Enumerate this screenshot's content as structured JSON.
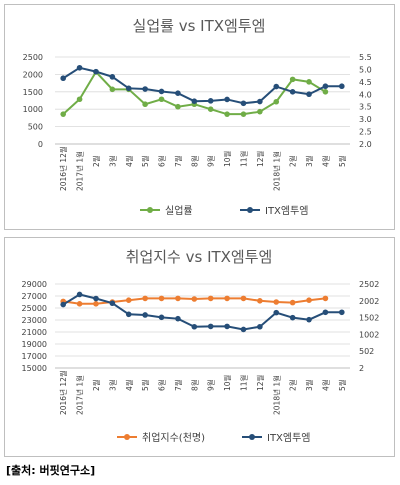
{
  "source": "[출처: 버핏연구소]",
  "chart_data": [
    {
      "type": "line",
      "title": "실업률 vs ITX엠투엠",
      "categories": [
        "2016년 12월",
        "2017년 1월",
        "2월",
        "3월",
        "4월",
        "5월",
        "6월",
        "7월",
        "8월",
        "9월",
        "10월",
        "11월",
        "12월",
        "2018년 1월",
        "2월",
        "3월",
        "4월",
        "5월"
      ],
      "xticks": [
        [
          "2016년 12",
          "월"
        ],
        [
          "2017년 1",
          "월"
        ],
        [
          "2",
          "월"
        ],
        [
          "3",
          "월"
        ],
        [
          "4",
          "월"
        ],
        [
          "5",
          "월"
        ],
        [
          "6",
          "월"
        ],
        [
          "7",
          "월"
        ],
        [
          "8",
          "월"
        ],
        [
          "9",
          "월"
        ],
        [
          "10",
          "월"
        ],
        [
          "11",
          "월"
        ],
        [
          "12",
          "월"
        ],
        [
          "2018년 1",
          "월"
        ],
        [
          "2",
          "월"
        ],
        [
          "3",
          "월"
        ],
        [
          "4",
          "월"
        ],
        [
          "5",
          "월"
        ]
      ],
      "left_axis": {
        "ylim": [
          0,
          2500
        ],
        "ticks": [
          0,
          500,
          1000,
          1500,
          2000,
          2500
        ]
      },
      "right_axis": {
        "ylim": [
          2,
          5.5
        ],
        "ticks": [
          2,
          2.5,
          3,
          3.5,
          4,
          4.5,
          5,
          5.5
        ]
      },
      "grid": true,
      "legend_position": "bottom",
      "series": [
        {
          "name": "실업률",
          "axis": "right",
          "color": "#70ad47",
          "values": [
            3.2,
            3.8,
            4.9,
            4.2,
            4.2,
            3.6,
            3.8,
            3.5,
            3.6,
            3.4,
            3.2,
            3.2,
            3.3,
            3.7,
            4.6,
            4.5,
            4.1,
            null
          ]
        },
        {
          "name": "ITX엠투엠",
          "axis": "left",
          "color": "#264e78",
          "values": [
            1890,
            2190,
            2080,
            1930,
            1600,
            1580,
            1510,
            1460,
            1230,
            1240,
            1280,
            1170,
            1220,
            1650,
            1500,
            1430,
            1660,
            1660
          ]
        }
      ]
    },
    {
      "type": "line",
      "title": "취업지수 vs ITX엠투엠",
      "categories": [
        "2016년 12월",
        "2017년 1월",
        "2월",
        "3월",
        "4월",
        "5월",
        "6월",
        "7월",
        "8월",
        "9월",
        "10월",
        "11월",
        "12월",
        "2018년 1월",
        "2월",
        "3월",
        "4월",
        "5월"
      ],
      "xticks": [
        [
          "2016년 12",
          "월"
        ],
        [
          "2017년 1",
          "월"
        ],
        [
          "2",
          "월"
        ],
        [
          "3",
          "월"
        ],
        [
          "4",
          "월"
        ],
        [
          "5",
          "월"
        ],
        [
          "6",
          "월"
        ],
        [
          "7",
          "월"
        ],
        [
          "8",
          "월"
        ],
        [
          "9",
          "월"
        ],
        [
          "10",
          "월"
        ],
        [
          "11",
          "월"
        ],
        [
          "12",
          "월"
        ],
        [
          "2018년 1",
          "월"
        ],
        [
          "2",
          "월"
        ],
        [
          "3",
          "월"
        ],
        [
          "4",
          "월"
        ],
        [
          "5",
          "월"
        ]
      ],
      "left_axis": {
        "ylim": [
          15000,
          29000
        ],
        "ticks": [
          15000,
          17000,
          19000,
          21000,
          23000,
          25000,
          27000,
          29000
        ]
      },
      "right_axis": {
        "ylim": [
          2,
          2502
        ],
        "ticks": [
          2,
          502,
          1002,
          1502,
          2002,
          2502
        ]
      },
      "grid": true,
      "legend_position": "bottom",
      "series": [
        {
          "name": "취업지수(천명)",
          "axis": "left",
          "color": "#ed7d31",
          "values": [
            26100,
            25700,
            25700,
            26000,
            26300,
            26600,
            26600,
            26600,
            26500,
            26600,
            26600,
            26600,
            26200,
            26000,
            25900,
            26300,
            26600,
            null
          ]
        },
        {
          "name": "ITX엠투엠",
          "axis": "right",
          "color": "#264e78",
          "values": [
            1890,
            2190,
            2070,
            1930,
            1600,
            1580,
            1510,
            1470,
            1230,
            1240,
            1240,
            1150,
            1230,
            1650,
            1500,
            1440,
            1660,
            1660
          ]
        }
      ]
    }
  ]
}
